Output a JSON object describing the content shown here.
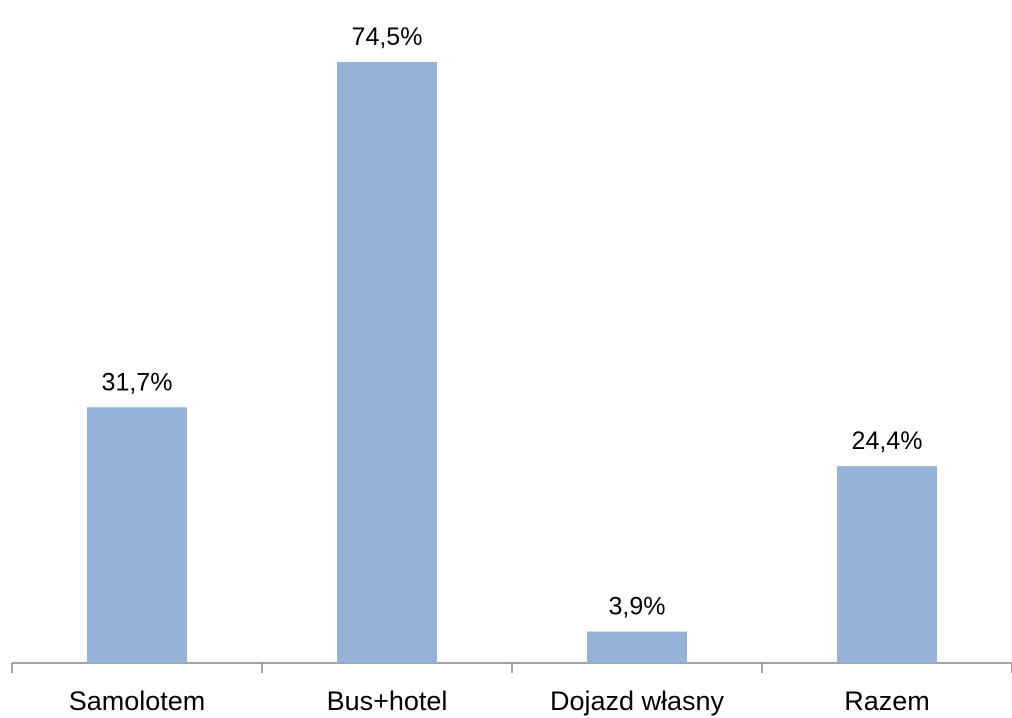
{
  "chart_data": {
    "type": "bar",
    "categories": [
      "Samolotem",
      "Bus+hotel",
      "Dojazd własny",
      "Razem"
    ],
    "values": [
      31.7,
      74.5,
      3.9,
      24.4
    ],
    "value_labels": [
      "31,7%",
      "74,5%",
      "3,9%",
      "24,4%"
    ],
    "color": "#95b3d7"
  }
}
